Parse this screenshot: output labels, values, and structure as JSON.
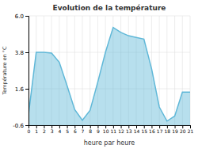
{
  "chart_data": {
    "type": "area",
    "title": "Evolution de la température",
    "xlabel": "heure par heure",
    "ylabel": "Température en °C",
    "x": [
      0,
      1,
      2,
      3,
      4,
      5,
      6,
      7,
      8,
      9,
      10,
      11,
      12,
      13,
      14,
      15,
      16,
      17,
      18,
      19,
      20,
      21
    ],
    "values": [
      0.05,
      3.8,
      3.8,
      3.75,
      3.2,
      1.8,
      0.35,
      -0.3,
      0.3,
      2.0,
      3.8,
      5.3,
      5.0,
      4.8,
      4.7,
      4.6,
      2.8,
      0.5,
      -0.35,
      -0.05,
      1.4,
      1.4
    ],
    "color": "#60b8d8",
    "xlim": [
      0,
      21
    ],
    "xticks": [
      0,
      1,
      2,
      3,
      4,
      5,
      6,
      7,
      8,
      9,
      10,
      11,
      12,
      13,
      14,
      15,
      16,
      17,
      18,
      19,
      20,
      21
    ],
    "ylim": [
      -0.6,
      6.0
    ],
    "yticks": [
      -0.6,
      1.6,
      3.8,
      {
        "value": 6.0,
        "label": "6.0"
      }
    ],
    "grid": true
  }
}
